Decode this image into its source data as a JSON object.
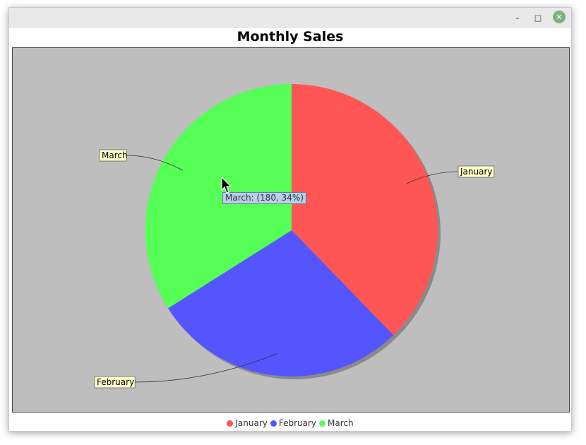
{
  "window": {
    "minimize_label": "–",
    "maximize_label": "□",
    "close_label": "✕"
  },
  "chart_data": {
    "type": "pie",
    "title": "Monthly Sales",
    "slices": [
      {
        "label": "January",
        "value": 200,
        "color": "#ff5555"
      },
      {
        "label": "February",
        "value": 150,
        "color": "#5555ff"
      },
      {
        "label": "March",
        "value": 180,
        "color": "#55ff55"
      }
    ],
    "legend": [
      "January",
      "February",
      "March"
    ],
    "legend_position": "bottom",
    "plot_background": "#bebebe"
  },
  "tooltip": {
    "text": "March: (180, 34%)"
  }
}
